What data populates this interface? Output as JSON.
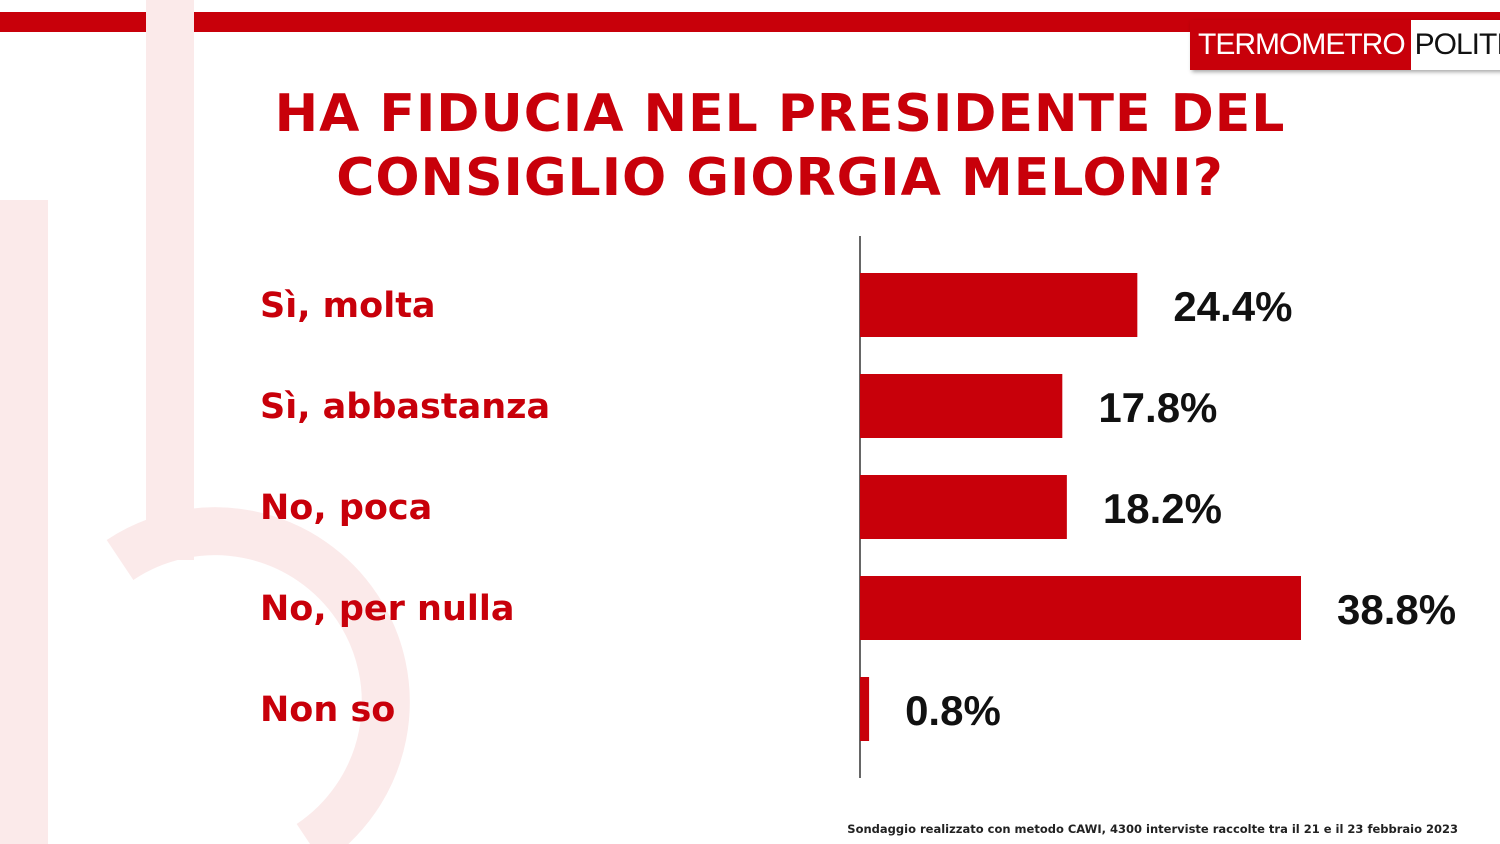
{
  "brand": {
    "name_part1": "TERMOMETRO",
    "name_part2": "POLITICO",
    "color_primary": "#c8000a"
  },
  "title": {
    "line1": "HA FIDUCIA NEL PRESIDENTE DEL",
    "line2": "CONSIGLIO GIORGIA MELONI?"
  },
  "chart_data": {
    "type": "bar",
    "orientation": "horizontal",
    "title": "HA FIDUCIA NEL PRESIDENTE DEL CONSIGLIO GIORGIA MELONI?",
    "categories": [
      "Sì, molta",
      "Sì, abbastanza",
      "No, poca",
      "No, per nulla",
      "Non so"
    ],
    "values": [
      24.4,
      17.8,
      18.2,
      38.8,
      0.8
    ],
    "value_labels": [
      "24.4%",
      "17.8%",
      "18.2%",
      "38.8%",
      "0.8%"
    ],
    "unit": "%",
    "xlim": [
      0,
      38.8
    ],
    "grid": false,
    "legend": "none",
    "bar_color": "#c8000a"
  },
  "footer": {
    "source": "Sondaggio realizzato con metodo CAWI, 4300 interviste raccolte tra il 21 e il 23 febbraio 2023"
  }
}
